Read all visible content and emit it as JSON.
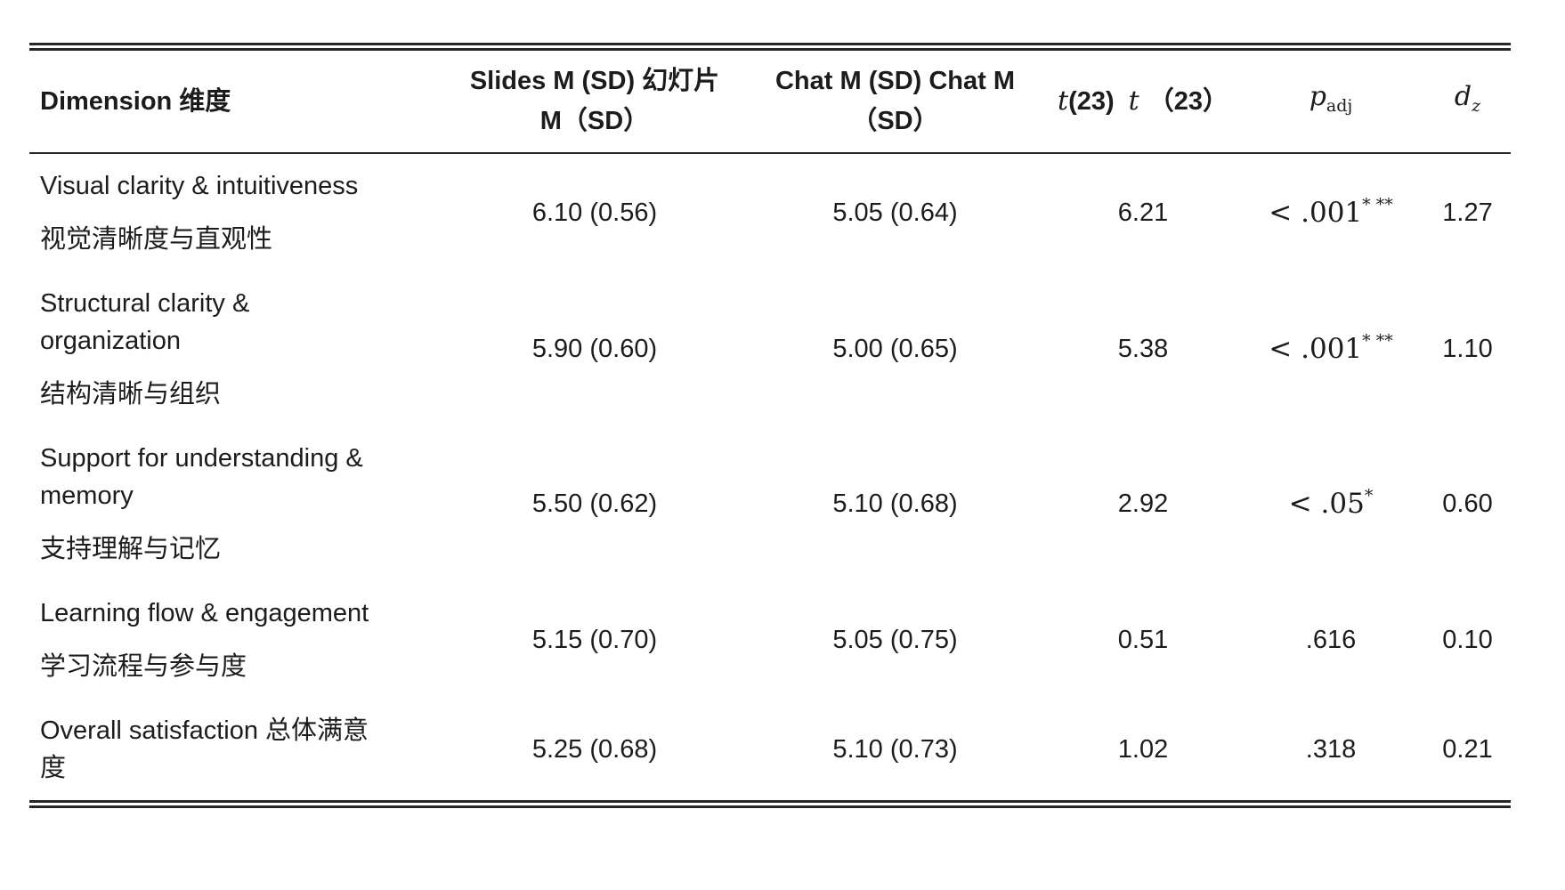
{
  "table": {
    "headers": {
      "dimension": "Dimension 维度",
      "slides": "Slides M (SD) 幻灯片\nM（SD）",
      "chat": "Chat M (SD) Chat M\n（SD）",
      "t_var1": "t",
      "t_paren1": "(23)",
      "t_var2": "t",
      "t_paren2": "（23）",
      "p_var": "p",
      "p_sub": "adj",
      "d_var": "d",
      "d_sub": "z"
    },
    "rows": [
      {
        "dimension_en": "Visual clarity & intuitiveness",
        "dimension_zh": "视觉清晰度与直观性",
        "slides": "6.10 (0.56)",
        "chat": "5.05 (0.64)",
        "t": "6.21",
        "p": "< .001",
        "p_sup": "* **",
        "p_math": true,
        "d": "1.27"
      },
      {
        "dimension_en": "Structural clarity &\norganization",
        "dimension_zh": "结构清晰与组织",
        "slides": "5.90 (0.60)",
        "chat": "5.00 (0.65)",
        "t": "5.38",
        "p": "< .001",
        "p_sup": "* **",
        "p_math": true,
        "d": "1.10"
      },
      {
        "dimension_en": "Support for understanding &\nmemory",
        "dimension_zh": "支持理解与记忆",
        "slides": "5.50 (0.62)",
        "chat": "5.10 (0.68)",
        "t": "2.92",
        "p": "< .05",
        "p_sup": "*",
        "p_math": true,
        "d": "0.60"
      },
      {
        "dimension_en": "Learning flow & engagement",
        "dimension_zh": "学习流程与参与度",
        "slides": "5.15 (0.70)",
        "chat": "5.05 (0.75)",
        "t": "0.51",
        "p": ".616",
        "p_sup": "",
        "p_math": false,
        "d": "0.10"
      },
      {
        "dimension_en": "Overall satisfaction 总体满意\n度",
        "dimension_zh": "",
        "slides": "5.25 (0.68)",
        "chat": "5.10 (0.73)",
        "t": "1.02",
        "p": ".318",
        "p_sup": "",
        "p_math": false,
        "d": "0.21"
      }
    ],
    "colors": {
      "text": "#1c1c1c",
      "rule": "#262626",
      "background": "#ffffff"
    }
  }
}
